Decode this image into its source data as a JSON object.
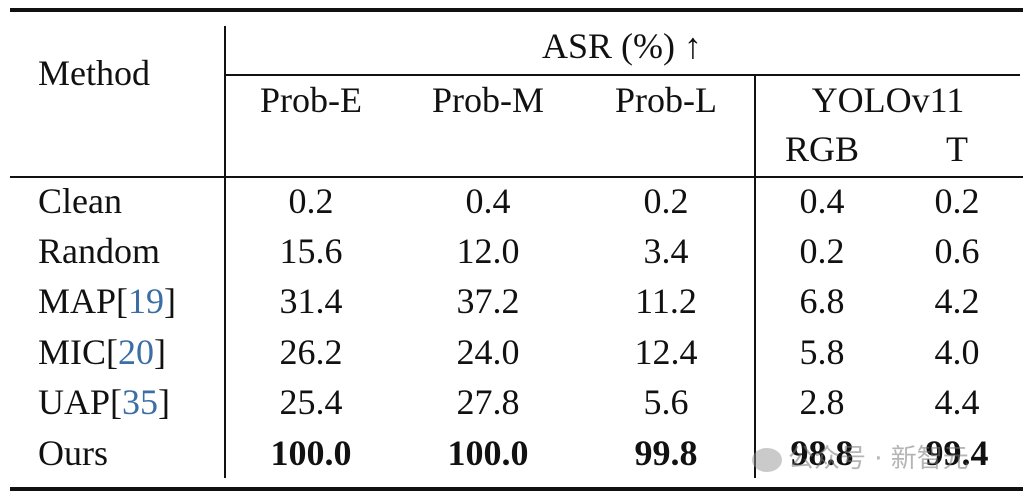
{
  "table": {
    "header": {
      "method": "Method",
      "group": "ASR (%) ↑",
      "columns": [
        "Prob-E",
        "Prob-M",
        "Prob-L"
      ],
      "yolo": "YOLOv11",
      "yolo_columns": [
        "RGB",
        "T"
      ]
    },
    "rows": [
      {
        "method": [
          "Clean"
        ],
        "values": [
          "0.2",
          "0.4",
          "0.2",
          "0.4",
          "0.2"
        ],
        "bold": false
      },
      {
        "method": [
          "Random"
        ],
        "values": [
          "15.6",
          "12.0",
          "3.4",
          "0.2",
          "0.6"
        ],
        "bold": false
      },
      {
        "method": [
          "MAP[",
          "19",
          "]"
        ],
        "values": [
          "31.4",
          "37.2",
          "11.2",
          "6.8",
          "4.2"
        ],
        "bold": false
      },
      {
        "method": [
          "MIC[",
          "20",
          "]"
        ],
        "values": [
          "26.2",
          "24.0",
          "12.4",
          "5.8",
          "4.0"
        ],
        "bold": false
      },
      {
        "method": [
          "UAP[",
          "35",
          "]"
        ],
        "values": [
          "25.4",
          "27.8",
          "5.6",
          "2.8",
          "4.4"
        ],
        "bold": false
      },
      {
        "method": [
          "Ours"
        ],
        "values": [
          "100.0",
          "100.0",
          "99.8",
          "98.8",
          "99.4"
        ],
        "bold": true
      }
    ],
    "watermark": "公众号 · 新智元"
  }
}
